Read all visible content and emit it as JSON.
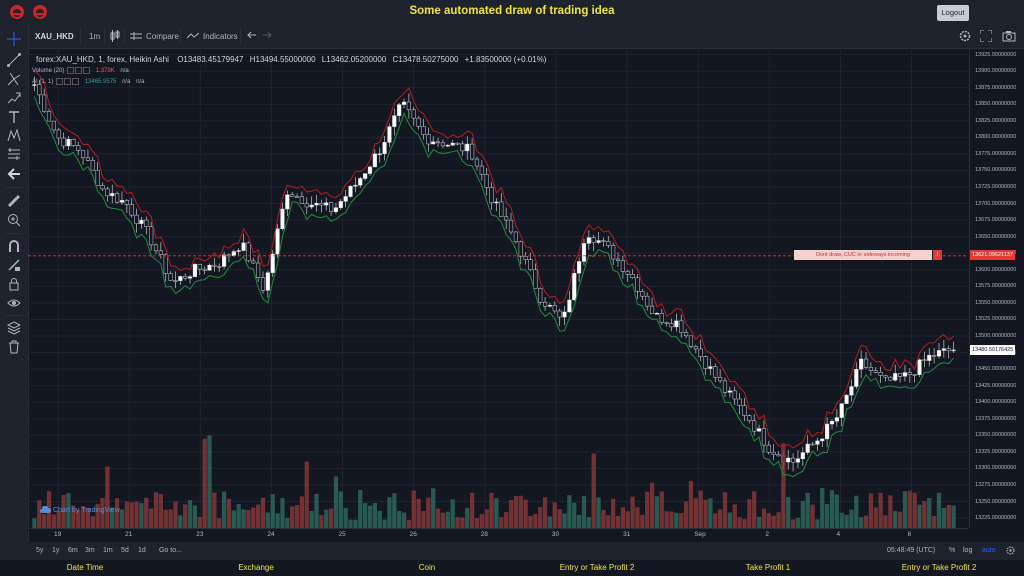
{
  "app": {
    "title": "Some automated draw of trading idea",
    "logout_label": "Logout"
  },
  "toolbar": {
    "symbol": "XAU_HKD",
    "interval": "1m",
    "compare_label": "Compare",
    "indicators_label": "Indicators"
  },
  "legend": {
    "main": "forex:XAU_HKD, 1, forex, Heikin Ashi",
    "open": "O13483.45179947",
    "high": "H13494.55000000",
    "low": "L13462.05200000",
    "close": "C13478.50275000",
    "change": "+1.83500000 (+0.01%)",
    "volume_label": "Volume (20)",
    "volume_value": "1.379K",
    "volume_na": "n/a",
    "ai_label": "AI (1, 1)",
    "ai_value": "13465.9575",
    "ai_na1": "n/a",
    "ai_na2": "n/a"
  },
  "watermark": "Chart by TradingView",
  "annotation": {
    "text": "Dont draw, CUC or sideways incoming",
    "badge": "!",
    "price_label": "13621.09621137"
  },
  "current_price_label": "13480.50176425",
  "price_axis": [
    "13925.00000000",
    "13900.00000000",
    "13875.00000000",
    "13850.00000000",
    "13825.00000000",
    "13800.00000000",
    "13775.00000000",
    "13750.00000000",
    "13725.00000000",
    "13700.00000000",
    "13675.00000000",
    "13650.00000000",
    "13625.00000000",
    "13600.00000000",
    "13575.00000000",
    "13550.00000000",
    "13525.00000000",
    "13500.00000000",
    "13475.00000000",
    "13450.00000000",
    "13425.00000000",
    "13400.00000000",
    "13375.00000000",
    "13350.00000000",
    "13325.00000000",
    "13300.00000000",
    "13275.00000000",
    "13250.00000000",
    "13225.00000000"
  ],
  "time_axis": [
    "19",
    "21",
    "23",
    "24",
    "25",
    "26",
    "28",
    "30",
    "31",
    "Sep",
    "2",
    "4",
    "6"
  ],
  "bottombar": {
    "ranges": [
      "5y",
      "1y",
      "6m",
      "3m",
      "1m",
      "5d",
      "1d"
    ],
    "goto": "Go to...",
    "clock": "05:48:49 (UTC)",
    "percent": "%",
    "log": "log",
    "auto": "auto"
  },
  "footer": [
    "Date Time",
    "Exchange",
    "Coin",
    "Entry or Take Profit 2",
    "Take Profit 1",
    "Entry or Take Profit 2"
  ],
  "colors": {
    "up": "#26a69a",
    "down": "#ef5350",
    "title": "#f0e442",
    "annotation": "#e53935",
    "background": "#131722"
  },
  "chart_data": {
    "type": "candlestick",
    "style": "Heikin Ashi",
    "ylim": [
      13210,
      13935
    ],
    "grid": true,
    "x_ticks": [
      "19",
      "21",
      "23",
      "24",
      "25",
      "26",
      "28",
      "30",
      "31",
      "Sep",
      "2",
      "4",
      "6"
    ],
    "approx_path": [
      13880,
      13800,
      13780,
      13720,
      13700,
      13650,
      13580,
      13600,
      13610,
      13640,
      13570,
      13720,
      13700,
      13690,
      13730,
      13780,
      13850,
      13800,
      13790,
      13780,
      13700,
      13640,
      13560,
      13520,
      13660,
      13630,
      13590,
      13530,
      13520,
      13470,
      13420,
      13380,
      13330,
      13310,
      13340,
      13380,
      13460,
      13430,
      13440,
      13470,
      13480
    ],
    "red_line_level": 13621.09621137
  }
}
